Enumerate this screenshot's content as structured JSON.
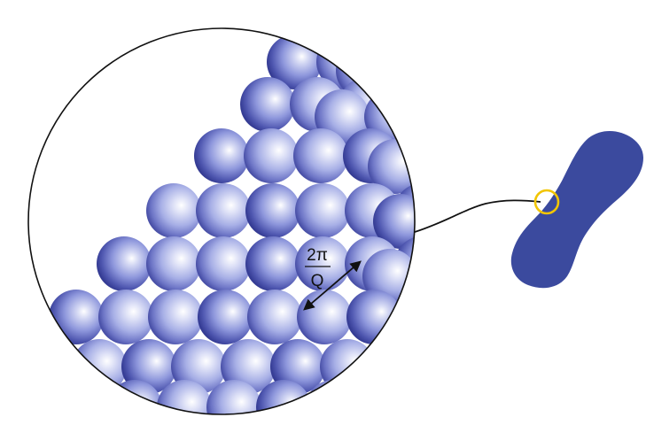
{
  "diagram": {
    "spacing_label": {
      "numerator": "2π",
      "denominator": "Q"
    },
    "colors": {
      "sphere_light": "#ffffff",
      "sphere_mid": "#a9b1e8",
      "sphere_dark": "#3a3f9a",
      "particle": "#3b4a9e",
      "highlight_ring": "#f2c500",
      "outline": "#111111"
    }
  }
}
